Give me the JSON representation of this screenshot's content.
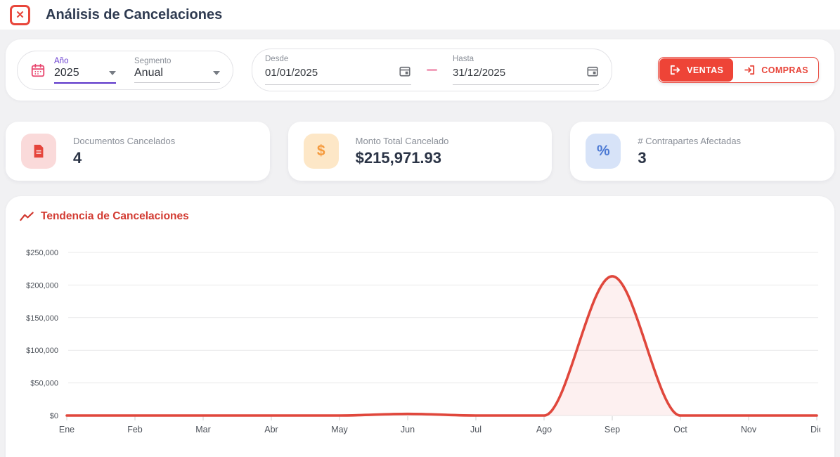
{
  "app": {
    "title": "Análisis de Cancelaciones"
  },
  "filters": {
    "year": {
      "label": "Año",
      "value": "2025"
    },
    "segment": {
      "label": "Segmento",
      "value": "Anual"
    },
    "date_from": {
      "label": "Desde",
      "value": "01/01/2025"
    },
    "date_to": {
      "label": "Hasta",
      "value": "31/12/2025"
    },
    "buttons": {
      "ventas": "VENTAS",
      "compras": "COMPRAS"
    }
  },
  "stats": {
    "documents": {
      "label": "Documentos Cancelados",
      "value": "4"
    },
    "amount": {
      "label": "Monto Total Cancelado",
      "value": "$215,971.93"
    },
    "counterparties": {
      "label": "# Contrapartes Afectadas",
      "value": "3"
    }
  },
  "chart": {
    "title": "Tendencia de Cancelaciones"
  },
  "chart_data": {
    "type": "area",
    "title": "Tendencia de Cancelaciones",
    "categories": [
      "Ene",
      "Feb",
      "Mar",
      "Abr",
      "May",
      "Jun",
      "Jul",
      "Ago",
      "Sep",
      "Oct",
      "Nov",
      "Dic"
    ],
    "values": [
      0,
      0,
      0,
      0,
      0,
      2471.93,
      0,
      0,
      213500,
      0,
      0,
      0
    ],
    "xlabel": "",
    "ylabel": "",
    "ylim": [
      0,
      250000
    ],
    "ytick_values": [
      0,
      50000,
      100000,
      150000,
      200000,
      250000
    ],
    "ytick_labels": [
      "$0",
      "$50,000",
      "$100,000",
      "$150,000",
      "$200,000",
      "$250,000"
    ],
    "grid": true,
    "legend": "none",
    "line_color": "#e0473c",
    "fill_color": "rgba(229,69,60,0.08)"
  },
  "colors": {
    "accent_red": "#ee4437",
    "purple_accent": "#5b34c9",
    "calendar_pink": "#e8476f",
    "title_navy": "#2e3a50",
    "label_gray": "#8a8f98"
  }
}
